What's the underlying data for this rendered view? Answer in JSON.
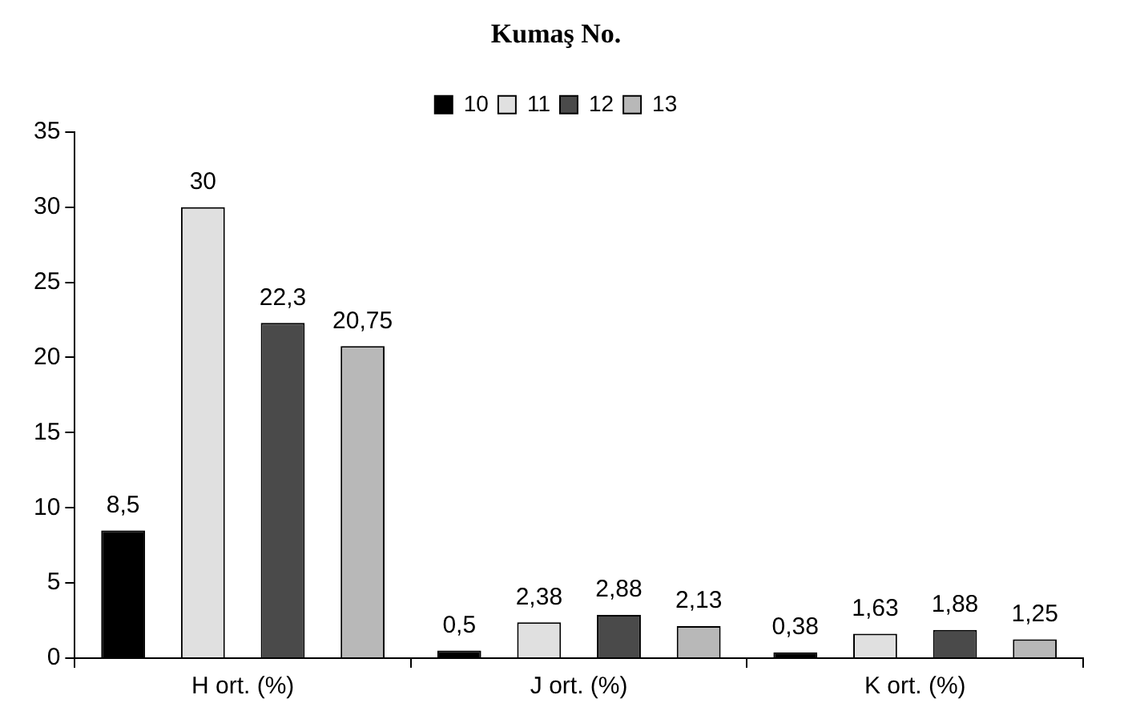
{
  "chart_data": {
    "type": "bar",
    "title": "Kumaş No.",
    "categories": [
      "H ort. (%)",
      "J ort. (%)",
      "K ort. (%)"
    ],
    "series": [
      {
        "name": "10",
        "color": "#000000",
        "values": [
          8.5,
          0.5,
          0.38
        ],
        "value_labels": [
          "8,5",
          "0,5",
          "0,38"
        ]
      },
      {
        "name": "11",
        "color": "#e0e0e0",
        "values": [
          30,
          2.38,
          1.63
        ],
        "value_labels": [
          "30",
          "2,38",
          "1,63"
        ]
      },
      {
        "name": "12",
        "color": "#4a4a4a",
        "values": [
          22.3,
          2.88,
          1.88
        ],
        "value_labels": [
          "22,3",
          "2,88",
          "1,88"
        ]
      },
      {
        "name": "13",
        "color": "#b8b8b8",
        "values": [
          20.75,
          2.13,
          1.25
        ],
        "value_labels": [
          "20,75",
          "2,13",
          "1,25"
        ]
      }
    ],
    "ylim": [
      0,
      35
    ],
    "yticks": [
      0,
      5,
      10,
      15,
      20,
      25,
      30,
      35
    ],
    "grid": false,
    "legend": "top"
  }
}
